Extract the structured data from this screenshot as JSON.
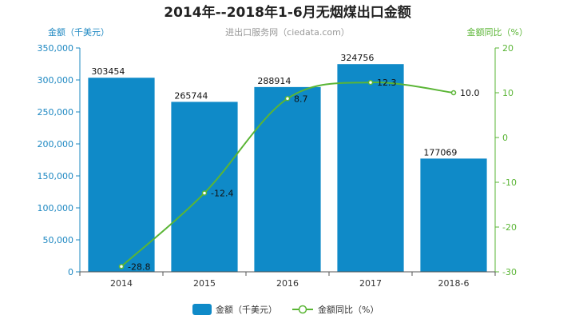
{
  "chart_data": {
    "type": "bar",
    "title": "2014年--2018年1-6月无烟煤出口金额",
    "subtitle": "进出口服务网（ciedata.com）",
    "categories": [
      "2014",
      "2015",
      "2016",
      "2017",
      "2018-6"
    ],
    "series": [
      {
        "name": "金额（千美元）",
        "type": "bar",
        "axis": "left",
        "values": [
          303454,
          265744,
          288914,
          324756,
          177069
        ],
        "labels": [
          "303454",
          "265744",
          "288914",
          "324756",
          "177069"
        ]
      },
      {
        "name": "金额同比（%）",
        "type": "line",
        "axis": "right",
        "values": [
          -28.8,
          -12.4,
          8.7,
          12.3,
          10.0
        ],
        "labels": [
          "-28.8",
          "-12.4",
          "8.7",
          "12.3",
          "10.0"
        ]
      }
    ],
    "y_left": {
      "label": "金额（千美元）",
      "min": 0,
      "max": 350000,
      "ticks": [
        0,
        50000,
        100000,
        150000,
        200000,
        250000,
        300000,
        350000
      ],
      "tick_labels": [
        "0",
        "50,000",
        "100,000",
        "150,000",
        "200,000",
        "250,000",
        "300,000",
        "350,000"
      ]
    },
    "y_right": {
      "label": "金额同比（%）",
      "min": -30,
      "max": 20,
      "ticks": [
        -30,
        -20,
        -10,
        0,
        10,
        20
      ],
      "tick_labels": [
        "-30",
        "-20",
        "-10",
        "0",
        "10",
        "20"
      ]
    },
    "grid": false,
    "legend_position": "bottom-center",
    "colors": {
      "bar": "#0f8ac8",
      "line": "#5ab535",
      "left_axis": "#1e88c2",
      "right_axis": "#5ab535",
      "title": "#222222",
      "subtitle": "#999999"
    }
  }
}
